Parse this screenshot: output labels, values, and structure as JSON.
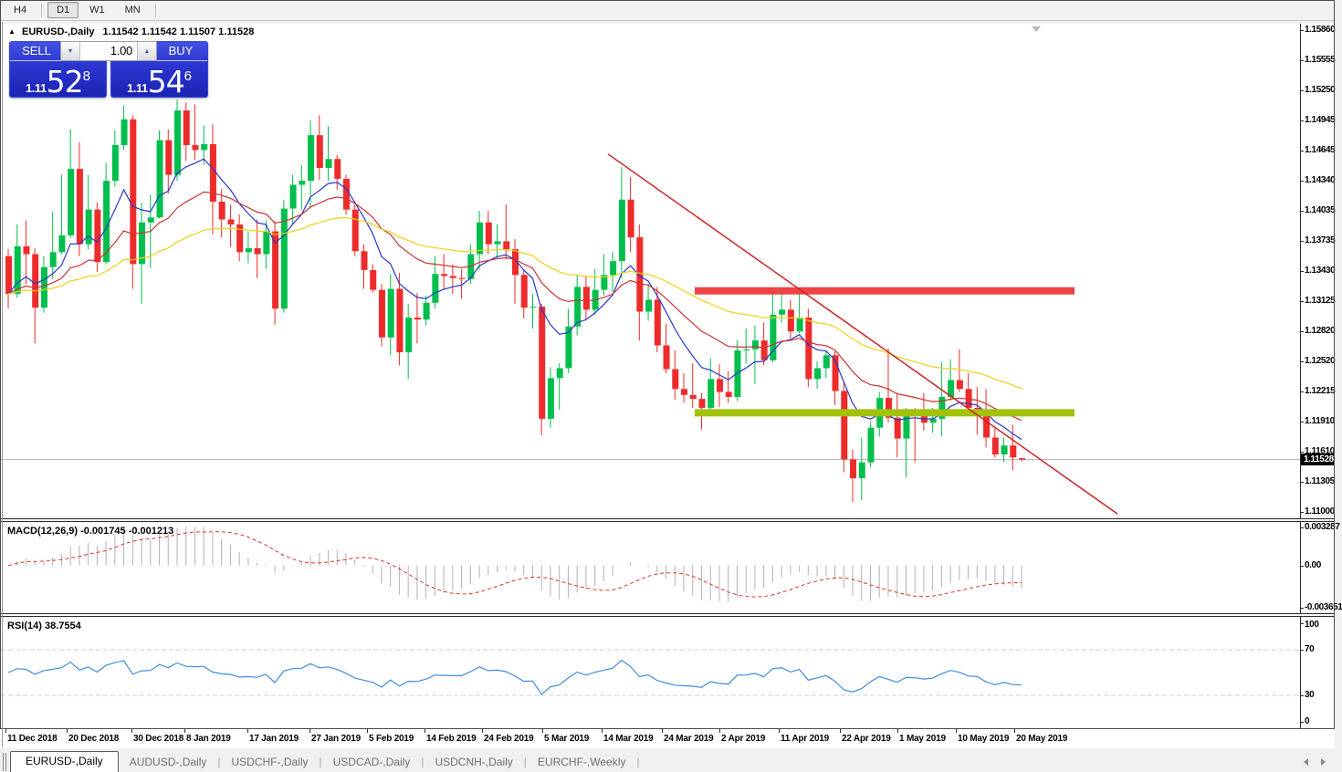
{
  "toolbar": {
    "timeframes": [
      "H4",
      "D1",
      "W1",
      "MN"
    ],
    "active": "D1"
  },
  "chart": {
    "title_arrow": "▲",
    "symbol_label": "EURUSD-,Daily",
    "ohlc_label": "1.11542 1.11542 1.11507 1.11528",
    "trade_panel": {
      "sell_label": "SELL",
      "buy_label": "BUY",
      "volume": "1.00",
      "sell_price": {
        "prefix": "1.11",
        "big": "52",
        "sup": "8"
      },
      "buy_price": {
        "prefix": "1.11",
        "big": "54",
        "sup": "6"
      }
    },
    "price_axis": {
      "labels": [
        "1.15860",
        "1.15555",
        "1.15250",
        "1.14945",
        "1.14645",
        "1.14340",
        "1.14035",
        "1.13735",
        "1.13430",
        "1.13125",
        "1.12820",
        "1.12520",
        "1.12215",
        "1.11910",
        "1.11610",
        "1.11305",
        "1.11000"
      ],
      "current_badge": "1.11528",
      "current_price": 1.11528
    }
  },
  "chart_data": {
    "type": "candlestick",
    "title": "EURUSD-,Daily",
    "bull_color": "#00bf4d",
    "bear_color": "#ee2b2b",
    "x_ticks": [
      {
        "label": "11 Dec 2018",
        "x": 8
      },
      {
        "label": "20 Dec 2018",
        "x": 75
      },
      {
        "label": "30 Dec 2018",
        "x": 146
      },
      {
        "label": "8 Jan 2019",
        "x": 204
      },
      {
        "label": "17 Jan 2019",
        "x": 273
      },
      {
        "label": "27 Jan 2019",
        "x": 341
      },
      {
        "label": "5 Feb 2019",
        "x": 404
      },
      {
        "label": "14 Feb 2019",
        "x": 467
      },
      {
        "label": "24 Feb 2019",
        "x": 530
      },
      {
        "label": "5 Mar 2019",
        "x": 596
      },
      {
        "label": "14 Mar 2019",
        "x": 661
      },
      {
        "label": "24 Mar 2019",
        "x": 727
      },
      {
        "label": "2 Apr 2019",
        "x": 790
      },
      {
        "label": "11 Apr 2019",
        "x": 855
      },
      {
        "label": "22 Apr 2019",
        "x": 922
      },
      {
        "label": "1 May 2019",
        "x": 985
      },
      {
        "label": "10 May 2019",
        "x": 1049
      },
      {
        "label": "20 May 2019",
        "x": 1113
      }
    ],
    "candles": [
      [
        1.1358,
        1.1365,
        1.1305,
        1.132
      ],
      [
        1.132,
        1.139,
        1.1316,
        1.1368
      ],
      [
        1.1368,
        1.1394,
        1.133,
        1.136
      ],
      [
        1.136,
        1.1366,
        1.127,
        1.1306
      ],
      [
        1.1306,
        1.1358,
        1.1301,
        1.1347
      ],
      [
        1.1347,
        1.1403,
        1.1335,
        1.1362
      ],
      [
        1.1362,
        1.144,
        1.136,
        1.1379
      ],
      [
        1.1379,
        1.1486,
        1.1376,
        1.1446
      ],
      [
        1.1446,
        1.1473,
        1.1358,
        1.137
      ],
      [
        1.137,
        1.144,
        1.1365,
        1.1405
      ],
      [
        1.1405,
        1.1412,
        1.1342,
        1.1352
      ],
      [
        1.1352,
        1.1452,
        1.135,
        1.1434
      ],
      [
        1.1434,
        1.1485,
        1.1428,
        1.147
      ],
      [
        1.147,
        1.151,
        1.1465,
        1.1496
      ],
      [
        1.1496,
        1.15,
        1.1325,
        1.135
      ],
      [
        1.135,
        1.1412,
        1.131,
        1.1392
      ],
      [
        1.1392,
        1.142,
        1.1346,
        1.1397
      ],
      [
        1.1397,
        1.1485,
        1.1396,
        1.1475
      ],
      [
        1.1475,
        1.1486,
        1.1421,
        1.144
      ],
      [
        1.144,
        1.1516,
        1.1434,
        1.1505
      ],
      [
        1.1505,
        1.1513,
        1.1454,
        1.147
      ],
      [
        1.147,
        1.1511,
        1.1455,
        1.1465
      ],
      [
        1.1465,
        1.149,
        1.145,
        1.1471
      ],
      [
        1.1471,
        1.1491,
        1.138,
        1.1413
      ],
      [
        1.1413,
        1.1426,
        1.1377,
        1.1395
      ],
      [
        1.1395,
        1.141,
        1.1367,
        1.139
      ],
      [
        1.139,
        1.14,
        1.1353,
        1.1362
      ],
      [
        1.1362,
        1.1383,
        1.1351,
        1.1366
      ],
      [
        1.1366,
        1.1395,
        1.1336,
        1.136
      ],
      [
        1.136,
        1.1394,
        1.1345,
        1.1383
      ],
      [
        1.1383,
        1.1393,
        1.1289,
        1.1305
      ],
      [
        1.1305,
        1.1415,
        1.1301,
        1.1406
      ],
      [
        1.1406,
        1.144,
        1.139,
        1.143
      ],
      [
        1.143,
        1.145,
        1.1405,
        1.1434
      ],
      [
        1.1434,
        1.1495,
        1.1406,
        1.148
      ],
      [
        1.148,
        1.15,
        1.1435,
        1.1447
      ],
      [
        1.1447,
        1.1489,
        1.1434,
        1.1456
      ],
      [
        1.1456,
        1.146,
        1.1425,
        1.1436
      ],
      [
        1.1436,
        1.144,
        1.14,
        1.1405
      ],
      [
        1.1405,
        1.141,
        1.1358,
        1.1363
      ],
      [
        1.1363,
        1.137,
        1.1325,
        1.1344
      ],
      [
        1.1344,
        1.135,
        1.1321,
        1.1324
      ],
      [
        1.1324,
        1.133,
        1.1267,
        1.1276
      ],
      [
        1.1276,
        1.134,
        1.1258,
        1.1325
      ],
      [
        1.1325,
        1.1341,
        1.1248,
        1.1261
      ],
      [
        1.1261,
        1.131,
        1.1234,
        1.1296
      ],
      [
        1.1296,
        1.1321,
        1.127,
        1.1294
      ],
      [
        1.1294,
        1.1318,
        1.1288,
        1.1311
      ],
      [
        1.1311,
        1.1358,
        1.1305,
        1.134
      ],
      [
        1.134,
        1.136,
        1.1324,
        1.1338
      ],
      [
        1.1338,
        1.135,
        1.132,
        1.1336
      ],
      [
        1.1336,
        1.1345,
        1.1315,
        1.1335
      ],
      [
        1.1335,
        1.137,
        1.133,
        1.136
      ],
      [
        1.136,
        1.1404,
        1.1345,
        1.1392
      ],
      [
        1.1392,
        1.1404,
        1.136,
        1.137
      ],
      [
        1.137,
        1.139,
        1.1355,
        1.1373
      ],
      [
        1.1373,
        1.141,
        1.1355,
        1.1365
      ],
      [
        1.1365,
        1.1375,
        1.131,
        1.1339
      ],
      [
        1.1339,
        1.1345,
        1.1295,
        1.1306
      ],
      [
        1.1306,
        1.132,
        1.1285,
        1.1307
      ],
      [
        1.1307,
        1.131,
        1.1177,
        1.1194
      ],
      [
        1.1194,
        1.1246,
        1.1185,
        1.1235
      ],
      [
        1.1235,
        1.125,
        1.1203,
        1.1245
      ],
      [
        1.1245,
        1.1305,
        1.124,
        1.1287
      ],
      [
        1.1287,
        1.1339,
        1.1278,
        1.1327
      ],
      [
        1.1327,
        1.1337,
        1.1294,
        1.1304
      ],
      [
        1.1304,
        1.1345,
        1.1299,
        1.1324
      ],
      [
        1.1324,
        1.136,
        1.1318,
        1.1339
      ],
      [
        1.1339,
        1.1362,
        1.1322,
        1.1353
      ],
      [
        1.1353,
        1.1448,
        1.1336,
        1.1415
      ],
      [
        1.1415,
        1.1438,
        1.1362,
        1.1377
      ],
      [
        1.1377,
        1.139,
        1.1273,
        1.1302
      ],
      [
        1.1302,
        1.133,
        1.1293,
        1.1314
      ],
      [
        1.1314,
        1.1327,
        1.1261,
        1.1268
      ],
      [
        1.1268,
        1.129,
        1.124,
        1.1244
      ],
      [
        1.1244,
        1.1263,
        1.1213,
        1.1224
      ],
      [
        1.1224,
        1.124,
        1.121,
        1.1218
      ],
      [
        1.1218,
        1.125,
        1.1205,
        1.1214
      ],
      [
        1.1214,
        1.122,
        1.1183,
        1.1205
      ],
      [
        1.1205,
        1.1255,
        1.12,
        1.1234
      ],
      [
        1.1234,
        1.1249,
        1.1206,
        1.1221
      ],
      [
        1.1221,
        1.1242,
        1.121,
        1.1216
      ],
      [
        1.1216,
        1.1273,
        1.1212,
        1.1263
      ],
      [
        1.1263,
        1.1285,
        1.125,
        1.1264
      ],
      [
        1.1264,
        1.1288,
        1.1229,
        1.1273
      ],
      [
        1.1273,
        1.1291,
        1.1248,
        1.1253
      ],
      [
        1.1253,
        1.1326,
        1.1251,
        1.1299
      ],
      [
        1.1299,
        1.132,
        1.1291,
        1.1304
      ],
      [
        1.1304,
        1.1314,
        1.1275,
        1.1282
      ],
      [
        1.1282,
        1.1324,
        1.128,
        1.1296
      ],
      [
        1.1296,
        1.1305,
        1.1226,
        1.1234
      ],
      [
        1.1234,
        1.1252,
        1.1224,
        1.1245
      ],
      [
        1.1245,
        1.1263,
        1.1235,
        1.1258
      ],
      [
        1.1258,
        1.1262,
        1.1208,
        1.1222
      ],
      [
        1.1222,
        1.123,
        1.114,
        1.1153
      ],
      [
        1.1153,
        1.1163,
        1.111,
        1.1134
      ],
      [
        1.1134,
        1.1175,
        1.1112,
        1.115
      ],
      [
        1.115,
        1.1191,
        1.1145,
        1.1185
      ],
      [
        1.1185,
        1.1221,
        1.1176,
        1.1215
      ],
      [
        1.1215,
        1.1265,
        1.119,
        1.1195
      ],
      [
        1.1195,
        1.122,
        1.1155,
        1.1174
      ],
      [
        1.1174,
        1.1205,
        1.1135,
        1.12
      ],
      [
        1.12,
        1.1205,
        1.115,
        1.1198
      ],
      [
        1.1198,
        1.122,
        1.1182,
        1.119
      ],
      [
        1.119,
        1.1205,
        1.118,
        1.1194
      ],
      [
        1.1194,
        1.1251,
        1.1176,
        1.1216
      ],
      [
        1.1216,
        1.1254,
        1.1212,
        1.1233
      ],
      [
        1.1233,
        1.1264,
        1.1221,
        1.1224
      ],
      [
        1.1224,
        1.124,
        1.1201,
        1.1205
      ],
      [
        1.1205,
        1.1226,
        1.1178,
        1.1203
      ],
      [
        1.1203,
        1.1224,
        1.1165,
        1.1175
      ],
      [
        1.1175,
        1.1186,
        1.1155,
        1.1158
      ],
      [
        1.1158,
        1.1175,
        1.115,
        1.1167
      ],
      [
        1.1167,
        1.1188,
        1.1142,
        1.1155
      ],
      [
        1.11542,
        1.11542,
        1.11507,
        1.11528
      ]
    ],
    "moving_averages": [
      {
        "name": "fast-ma",
        "period": 8,
        "color": "#2936cf"
      },
      {
        "name": "mid-ma",
        "period": 20,
        "color": "#cc3333"
      },
      {
        "name": "slow-ma",
        "period": 45,
        "color": "#eed318"
      }
    ],
    "annotations": {
      "resistance_band": {
        "x1": 760,
        "x2": 1176,
        "price": 1.1323,
        "color": "#ee4444",
        "thickness": 8
      },
      "support_band": {
        "x1": 760,
        "x2": 1176,
        "price": 1.12,
        "color": "#a2c20c",
        "thickness": 8
      },
      "trendline": {
        "x1": 665,
        "price1": 1.1461,
        "x2": 1223,
        "price2": 1.1098,
        "color": "#cc2222"
      },
      "bid_line": {
        "price": 1.11528,
        "color": "#b0b0b0"
      }
    }
  },
  "macd": {
    "name_label": "MACD(12,26,9)",
    "values_label": "-0.001745 -0.001213",
    "axis_labels": [
      "0.003287",
      "0.00",
      "-0.003651"
    ],
    "max": 0.003287,
    "min": -0.003651,
    "fast": 12,
    "slow": 26,
    "signal": 9,
    "histogram_color": "#b2b2b2",
    "signal_color": "#e03232"
  },
  "rsi": {
    "name_label": "RSI(14)",
    "value_label": "38.7554",
    "axis_labels": [
      "100",
      "70",
      "30",
      "0"
    ],
    "levels": [
      70,
      30
    ],
    "period": 14,
    "line_color": "#3f8ce2"
  },
  "tabs": {
    "items": [
      "EURUSD-,Daily",
      "AUDUSD-,Daily",
      "USDCHF-,Daily",
      "USDCAD-,Daily",
      "USDCNH-,Daily",
      "EURCHF-,Weekly"
    ],
    "active_index": 0
  }
}
